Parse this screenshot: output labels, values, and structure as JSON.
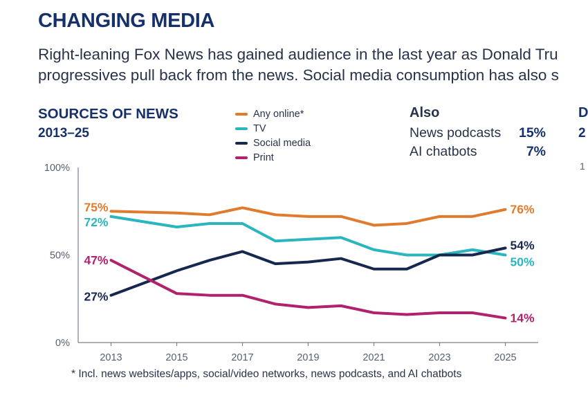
{
  "header": {
    "title": "CHANGING MEDIA",
    "subtitle_lines": [
      "Right-leaning Fox News has gained audience in the last year as Donald Tru",
      "progressives pull back from the news. Social media consumption has also s"
    ]
  },
  "also_panel": {
    "heading": "Also",
    "items": [
      {
        "label": "News podcasts",
        "value": "15%"
      },
      {
        "label": "AI chatbots",
        "value": "7%"
      }
    ]
  },
  "clipped_panel": {
    "heading_fragment": "D",
    "range_fragment": "2",
    "axis_fragment": "1"
  },
  "footnote": "* Incl. news websites/apps, social/video networks, news podcasts, and AI chatbots",
  "colors": {
    "any_online": "#e07b2e",
    "tv": "#2bb5be",
    "social": "#16284f",
    "print": "#b0226d",
    "axis": "#7a7f88",
    "title": "#16306b"
  },
  "chart_data": {
    "type": "line",
    "title": "SOURCES OF NEWS",
    "subtitle": "2013–25",
    "ylim": [
      0,
      100
    ],
    "yticks": [
      {
        "value": 0,
        "label": "0%"
      },
      {
        "value": 50,
        "label": "50%"
      },
      {
        "value": 100,
        "label": "100%"
      }
    ],
    "xlim": [
      2012,
      2026
    ],
    "xticks": [
      {
        "value": 2013,
        "label": "2013"
      },
      {
        "value": 2015,
        "label": "2015"
      },
      {
        "value": 2017,
        "label": "2017"
      },
      {
        "value": 2019,
        "label": "2019"
      },
      {
        "value": 2021,
        "label": "2021"
      },
      {
        "value": 2023,
        "label": "2023"
      },
      {
        "value": 2025,
        "label": "2025"
      }
    ],
    "x": [
      2013,
      2015,
      2016,
      2017,
      2018,
      2019,
      2020,
      2021,
      2022,
      2023,
      2024,
      2025
    ],
    "series": [
      {
        "key": "any_online",
        "name": "Any online*",
        "color": "#e07b2e",
        "values": [
          75,
          74,
          73,
          77,
          73,
          72,
          72,
          67,
          68,
          72,
          72,
          76
        ],
        "start_label": "75%",
        "end_label": "76%"
      },
      {
        "key": "tv",
        "name": "TV",
        "color": "#2bb5be",
        "values": [
          72,
          66,
          68,
          68,
          58,
          59,
          60,
          53,
          50,
          50,
          53,
          50
        ],
        "start_label": "72%",
        "end_label": "50%"
      },
      {
        "key": "social",
        "name": "Social media",
        "color": "#16284f",
        "values": [
          27,
          41,
          47,
          52,
          45,
          46,
          48,
          42,
          42,
          50,
          50,
          54
        ],
        "start_label": "27%",
        "end_label": "54%"
      },
      {
        "key": "print",
        "name": "Print",
        "color": "#b0226d",
        "values": [
          47,
          28,
          27,
          27,
          22,
          20,
          21,
          17,
          16,
          17,
          17,
          14
        ],
        "start_label": "47%",
        "end_label": "14%"
      }
    ]
  }
}
